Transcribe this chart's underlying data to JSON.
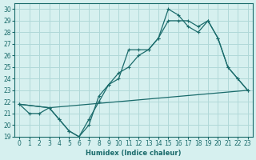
{
  "xlabel": "Humidex (Indice chaleur)",
  "ylabel": "",
  "background_color": "#d6f0ef",
  "grid_color": "#b0d8d8",
  "line_color": "#1a6b6b",
  "xlim": [
    -0.5,
    23.5
  ],
  "ylim": [
    19,
    30.5
  ],
  "yticks": [
    19,
    20,
    21,
    22,
    23,
    24,
    25,
    26,
    27,
    28,
    29,
    30
  ],
  "xticks": [
    0,
    1,
    2,
    3,
    4,
    5,
    6,
    7,
    8,
    9,
    10,
    11,
    12,
    13,
    14,
    15,
    16,
    17,
    18,
    19,
    20,
    21,
    22,
    23
  ],
  "line1_x": [
    0,
    1,
    2,
    3,
    4,
    5,
    6,
    7,
    8,
    9,
    10,
    11,
    12,
    13,
    14,
    15,
    16,
    17,
    18,
    19,
    20,
    21,
    22,
    23
  ],
  "line1_y": [
    21.8,
    21.0,
    21.0,
    21.5,
    20.5,
    19.5,
    19.0,
    20.0,
    22.5,
    23.5,
    24.0,
    26.5,
    26.5,
    26.5,
    27.5,
    30.0,
    29.5,
    28.5,
    28.0,
    29.0,
    27.5,
    25.0,
    24.0,
    23.0
  ],
  "line2_x": [
    0,
    3,
    4,
    5,
    6,
    7,
    8,
    9,
    10,
    11,
    12,
    13,
    14,
    15,
    16,
    17,
    18,
    19,
    20,
    21,
    22,
    23
  ],
  "line2_y": [
    21.8,
    21.5,
    20.5,
    19.5,
    19.0,
    20.5,
    22.0,
    23.5,
    24.5,
    25.0,
    26.0,
    26.5,
    27.5,
    29.0,
    29.0,
    29.0,
    28.5,
    29.0,
    27.5,
    25.0,
    24.0,
    23.0
  ],
  "line3_x": [
    0,
    3,
    23
  ],
  "line3_y": [
    21.8,
    21.5,
    23.0
  ]
}
